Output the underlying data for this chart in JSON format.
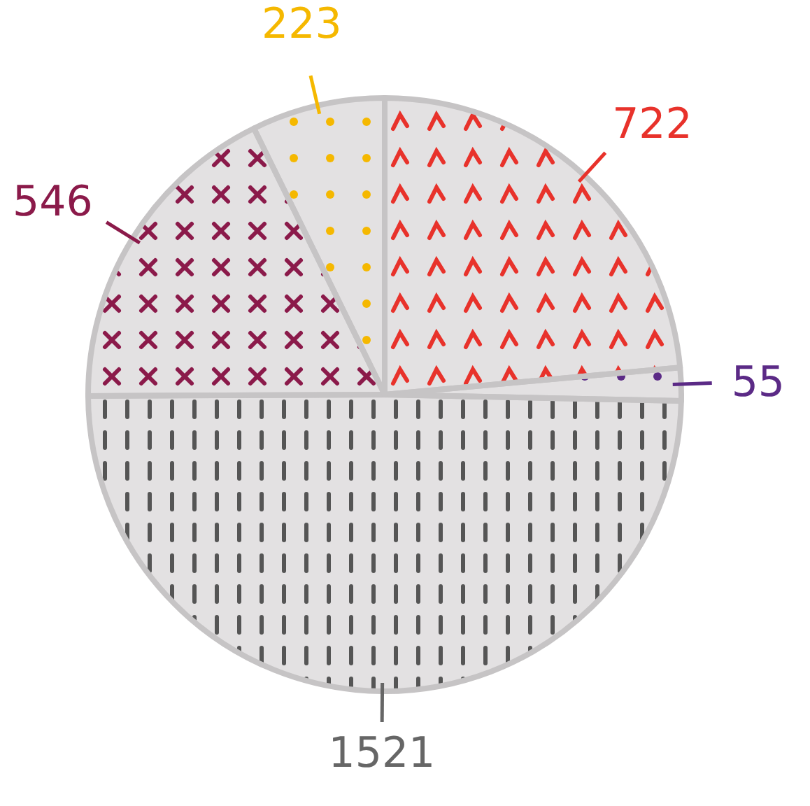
{
  "chart_data": {
    "type": "pie",
    "categories": [
      null,
      null,
      null,
      null,
      null
    ],
    "values": [
      722,
      55,
      1521,
      546,
      223
    ],
    "colors": [
      "#e8322b",
      "#5b2a86",
      "#555555",
      "#8b1a4a",
      "#f5b800"
    ],
    "data_labels": true
  }
}
